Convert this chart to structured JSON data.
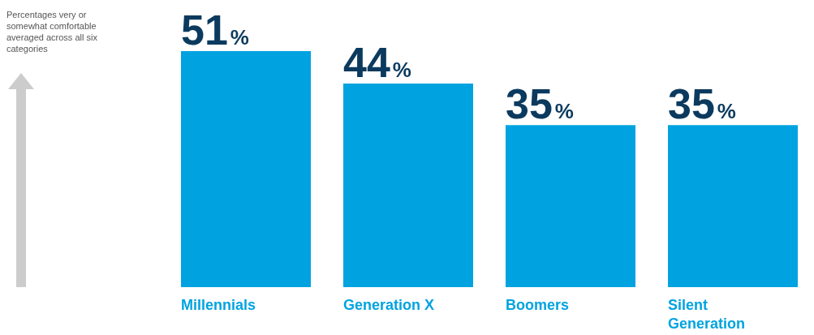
{
  "chart_data": {
    "type": "bar",
    "categories": [
      "Millennials",
      "Generation X",
      "Boomers",
      "Silent Generation"
    ],
    "values": [
      51,
      44,
      35,
      35
    ],
    "value_labels": [
      "51%",
      "44%",
      "35%",
      "35%"
    ],
    "color": "#00a3e0",
    "ylim": [
      0,
      51
    ],
    "tick_labels": "x",
    "annotations": [
      "Percentages very or somewhat comfortable averaged across all six categories"
    ]
  }
}
